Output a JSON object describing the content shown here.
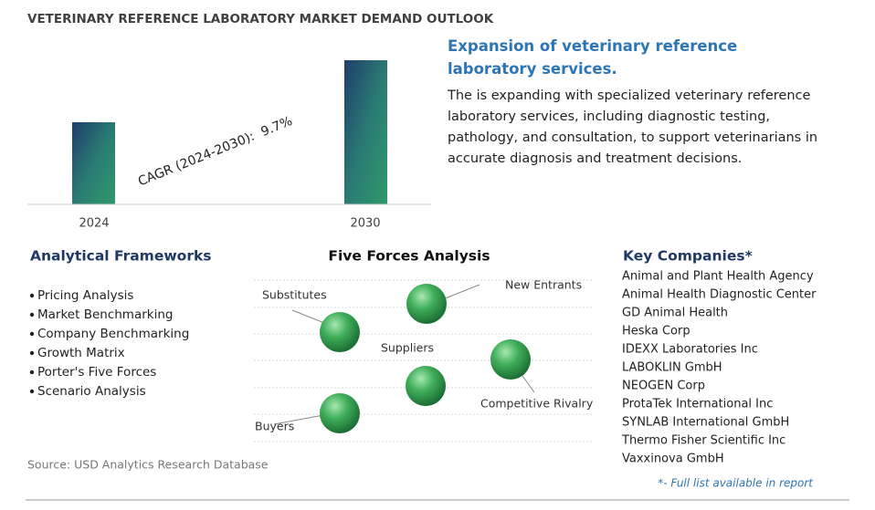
{
  "title": "VETERINARY REFERENCE LABORATORY MARKET DEMAND OUTLOOK",
  "market_chart": {
    "years": [
      "2024",
      "2030"
    ],
    "cagr_label": "CAGR (2024-2030):",
    "cagr_value": "9.7%"
  },
  "summary": {
    "heading": "Expansion of veterinary reference laboratory services.",
    "body": "The is expanding with specialized veterinary reference laboratory services, including diagnostic testing, pathology, and consultation, to support veterinarians in accurate diagnosis and treatment decisions."
  },
  "frameworks": {
    "heading": "Analytical Frameworks",
    "items": [
      "Pricing Analysis",
      "Market Benchmarking",
      "Company Benchmarking",
      "Growth Matrix",
      "Porter's Five Forces",
      "Scenario Analysis"
    ]
  },
  "five_forces": {
    "heading": "Five Forces Analysis",
    "forces": [
      "Substitutes",
      "New Entrants",
      "Suppliers",
      "Competitive Rivalry",
      "Buyers"
    ]
  },
  "key_companies": {
    "heading": "Key Companies*",
    "items": [
      "Animal and Plant Health Agency",
      "Animal Health Diagnostic Center",
      "GD Animal Health",
      "Heska Corp",
      "IDEXX Laboratories Inc",
      "LABOKLIN GmbH",
      "NEOGEN Corp",
      "ProtaTek International Inc",
      "SYNLAB International GmbH",
      "Thermo Fisher Scientific Inc",
      "Vaxxinova GmbH"
    ],
    "note": "*- Full list available in report"
  },
  "source": "Source: USD Analytics Research Database"
}
